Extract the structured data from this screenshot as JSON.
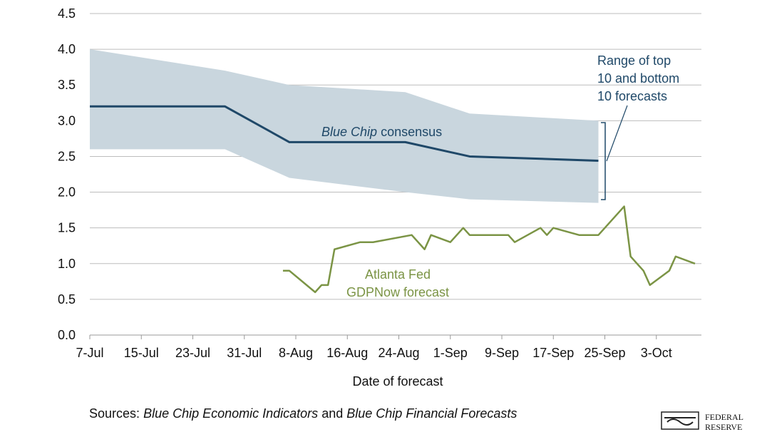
{
  "chart_data": {
    "type": "line",
    "xlabel": "Date of forecast",
    "xlim": [
      0,
      95
    ],
    "xticks": [
      {
        "value": 0,
        "label": "7-Jul"
      },
      {
        "value": 8,
        "label": "15-Jul"
      },
      {
        "value": 16,
        "label": "23-Jul"
      },
      {
        "value": 24,
        "label": "31-Jul"
      },
      {
        "value": 32,
        "label": "8-Aug"
      },
      {
        "value": 40,
        "label": "16-Aug"
      },
      {
        "value": 48,
        "label": "24-Aug"
      },
      {
        "value": 56,
        "label": "1-Sep"
      },
      {
        "value": 64,
        "label": "9-Sep"
      },
      {
        "value": 72,
        "label": "17-Sep"
      },
      {
        "value": 80,
        "label": "25-Sep"
      },
      {
        "value": 88,
        "label": "3-Oct"
      }
    ],
    "ylim": [
      0,
      4.5
    ],
    "yticks": [
      {
        "value": 0,
        "label": "0.0"
      },
      0.5,
      {
        "value": 1,
        "label": "1.0"
      },
      1.5,
      {
        "value": 2,
        "label": "2.0"
      },
      2.5,
      {
        "value": 3,
        "label": "3.0"
      },
      3.5,
      {
        "value": 4,
        "label": "4.0"
      },
      4.5
    ],
    "grid": true,
    "band": {
      "color": "#c9d6de",
      "x": [
        0,
        21,
        31,
        49,
        59,
        79
      ],
      "upper": [
        4.0,
        3.7,
        3.5,
        3.4,
        3.1,
        3.0
      ],
      "lower": [
        2.6,
        2.6,
        2.2,
        2.0,
        1.9,
        1.85
      ]
    },
    "series": [
      {
        "color": "#1f4868",
        "x": [
          0,
          21,
          31,
          49,
          59,
          79
        ],
        "values": [
          3.2,
          3.2,
          2.7,
          2.7,
          2.5,
          2.44
        ]
      },
      {
        "color": "#7b9445",
        "x": [
          30,
          31,
          35,
          36,
          37,
          38,
          42,
          44,
          50,
          52,
          53,
          56,
          58,
          59,
          65,
          66,
          70,
          71,
          72,
          76,
          79,
          83,
          84,
          86,
          87,
          90,
          91,
          94
        ],
        "values": [
          0.9,
          0.9,
          0.6,
          0.7,
          0.7,
          1.2,
          1.3,
          1.3,
          1.4,
          1.2,
          1.4,
          1.3,
          1.5,
          1.4,
          1.4,
          1.3,
          1.5,
          1.4,
          1.5,
          1.4,
          1.4,
          1.8,
          1.1,
          0.9,
          0.7,
          0.9,
          1.1,
          1.0
        ]
      }
    ],
    "annotations": {
      "consensus": [
        "Blue Chip",
        "consensus"
      ],
      "gdpnow": [
        "Atlanta Fed",
        "GDPNow forecast"
      ],
      "range": [
        "Range of top",
        "10 and bottom",
        "10 forecasts"
      ]
    },
    "source": [
      "Sources:",
      "Blue Chip Economic Indicators",
      "and",
      "Blue Chip Financial Forecasts"
    ],
    "logo": [
      "FEDERAL",
      "RESERVE"
    ]
  }
}
